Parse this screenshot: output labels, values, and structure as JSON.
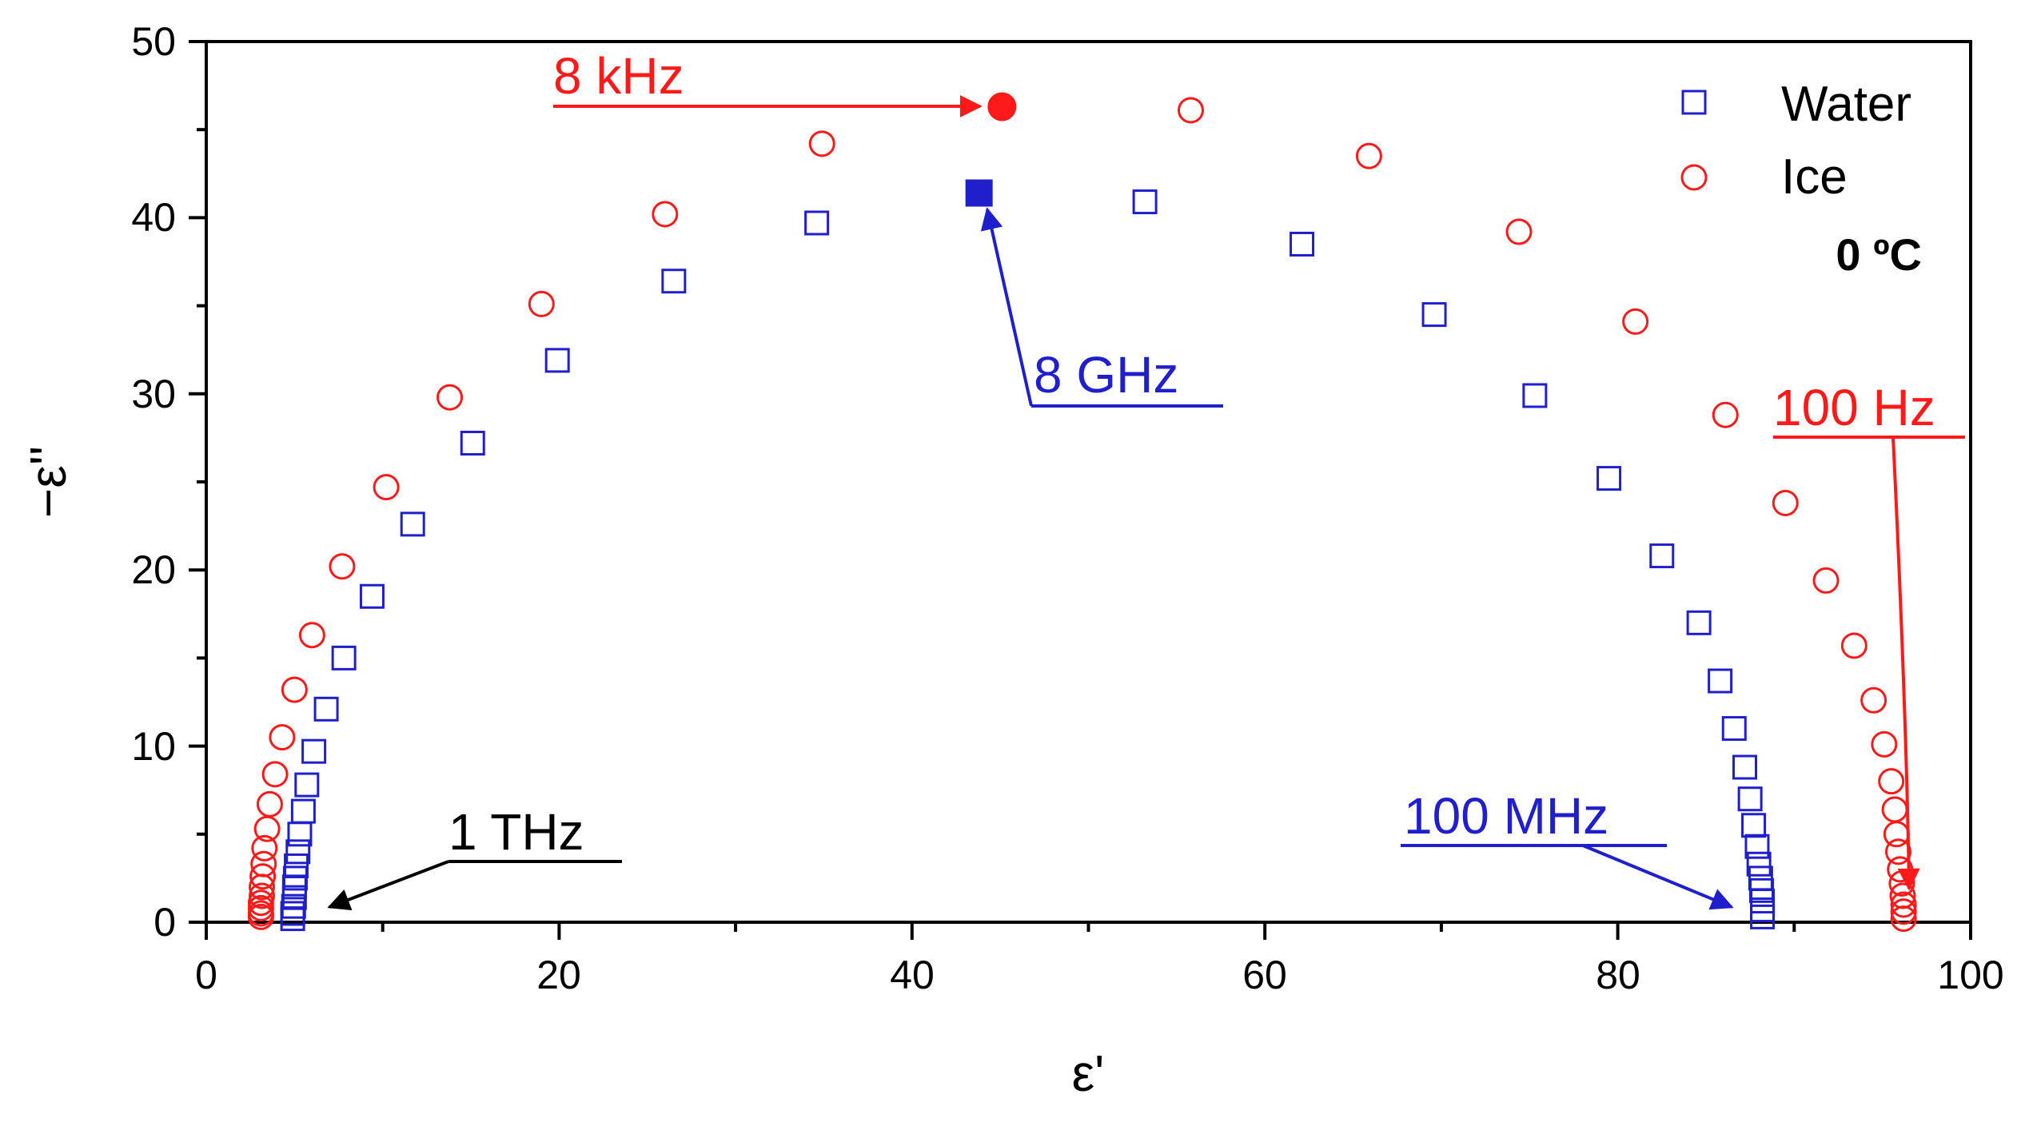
{
  "chart_data": {
    "type": "scatter",
    "title": "",
    "xlabel": "ε'",
    "ylabel": "−ε''",
    "xlim": [
      0,
      100
    ],
    "ylim": [
      0,
      50
    ],
    "xticks": [
      0,
      20,
      40,
      60,
      80,
      100
    ],
    "yticks": [
      0,
      10,
      20,
      30,
      40,
      50
    ],
    "xtick_labels": [
      "0",
      "20",
      "40",
      "60",
      "80",
      "100"
    ],
    "ytick_labels": [
      "0",
      "10",
      "20",
      "30",
      "40",
      "50"
    ],
    "legend_position": "top-right",
    "condition_label": "0 ºC",
    "series": [
      {
        "name": "Water",
        "marker": "square",
        "color": "#1f1fcc",
        "points": [
          [
            88.2,
            0.3
          ],
          [
            88.2,
            0.7
          ],
          [
            88.2,
            1.2
          ],
          [
            88.15,
            1.8
          ],
          [
            88.1,
            2.5
          ],
          [
            88.0,
            3.3
          ],
          [
            87.9,
            4.3
          ],
          [
            87.7,
            5.5
          ],
          [
            87.5,
            7.0
          ],
          [
            87.2,
            8.8
          ],
          [
            86.6,
            11.0
          ],
          [
            85.8,
            13.7
          ],
          [
            84.6,
            17.0
          ],
          [
            82.5,
            20.8
          ],
          [
            79.5,
            25.2
          ],
          [
            75.3,
            29.9
          ],
          [
            69.6,
            34.5
          ],
          [
            62.1,
            38.5
          ],
          [
            53.2,
            40.9
          ],
          [
            43.8,
            41.4
          ],
          [
            34.6,
            39.7
          ],
          [
            26.5,
            36.4
          ],
          [
            19.9,
            31.9
          ],
          [
            15.1,
            27.2
          ],
          [
            11.7,
            22.6
          ],
          [
            9.4,
            18.5
          ],
          [
            7.8,
            15.0
          ],
          [
            6.8,
            12.1
          ],
          [
            6.1,
            9.7
          ],
          [
            5.7,
            7.8
          ],
          [
            5.5,
            6.3
          ],
          [
            5.3,
            5.0
          ],
          [
            5.2,
            4.0
          ],
          [
            5.1,
            3.2
          ],
          [
            5.05,
            2.5
          ],
          [
            5.0,
            2.0
          ],
          [
            5.0,
            1.4
          ],
          [
            4.95,
            0.9
          ],
          [
            4.9,
            0.5
          ],
          [
            4.9,
            0.2
          ]
        ]
      },
      {
        "name": "Ice",
        "marker": "circle",
        "color": "#ff1a1a",
        "points": [
          [
            96.2,
            0.2
          ],
          [
            96.2,
            0.6
          ],
          [
            96.2,
            1.0
          ],
          [
            96.15,
            1.5
          ],
          [
            96.1,
            2.2
          ],
          [
            96.0,
            3.0
          ],
          [
            95.9,
            4.0
          ],
          [
            95.8,
            5.0
          ],
          [
            95.7,
            6.4
          ],
          [
            95.5,
            8.0
          ],
          [
            95.1,
            10.1
          ],
          [
            94.5,
            12.6
          ],
          [
            93.4,
            15.7
          ],
          [
            91.8,
            19.4
          ],
          [
            89.5,
            23.8
          ],
          [
            86.1,
            28.8
          ],
          [
            81.0,
            34.1
          ],
          [
            74.4,
            39.2
          ],
          [
            65.9,
            43.5
          ],
          [
            55.8,
            46.1
          ],
          [
            45.1,
            46.3
          ],
          [
            34.9,
            44.2
          ],
          [
            26.0,
            40.2
          ],
          [
            19.0,
            35.1
          ],
          [
            13.8,
            29.8
          ],
          [
            10.2,
            24.7
          ],
          [
            7.7,
            20.2
          ],
          [
            6.0,
            16.3
          ],
          [
            5.0,
            13.2
          ],
          [
            4.3,
            10.5
          ],
          [
            3.9,
            8.4
          ],
          [
            3.6,
            6.7
          ],
          [
            3.45,
            5.3
          ],
          [
            3.3,
            4.2
          ],
          [
            3.25,
            3.3
          ],
          [
            3.2,
            2.6
          ],
          [
            3.15,
            2.0
          ],
          [
            3.15,
            1.5
          ],
          [
            3.1,
            1.1
          ],
          [
            3.1,
            0.8
          ],
          [
            3.1,
            0.5
          ],
          [
            3.1,
            0.3
          ]
        ]
      }
    ],
    "highlights": [
      {
        "name": "water-8ghz-point",
        "series": "Water",
        "x": 43.8,
        "y": 41.4,
        "marker": "square",
        "color": "#1f1fcc"
      },
      {
        "name": "ice-8khz-point",
        "series": "Ice",
        "x": 45.1,
        "y": 46.3,
        "marker": "circle",
        "color": "#ff1a1a"
      }
    ],
    "annotations": [
      {
        "name": "ann-8khz",
        "text": "8 kHz",
        "color": "#ff1a1a"
      },
      {
        "name": "ann-8ghz",
        "text": "8 GHz",
        "color": "#1f1fcc"
      },
      {
        "name": "ann-100hz",
        "text": "100 Hz",
        "color": "#ff1a1a"
      },
      {
        "name": "ann-100mhz",
        "text": "100 MHz",
        "color": "#1f1fcc"
      },
      {
        "name": "ann-1thz",
        "text": "1 THz",
        "color": "#000000"
      }
    ]
  }
}
